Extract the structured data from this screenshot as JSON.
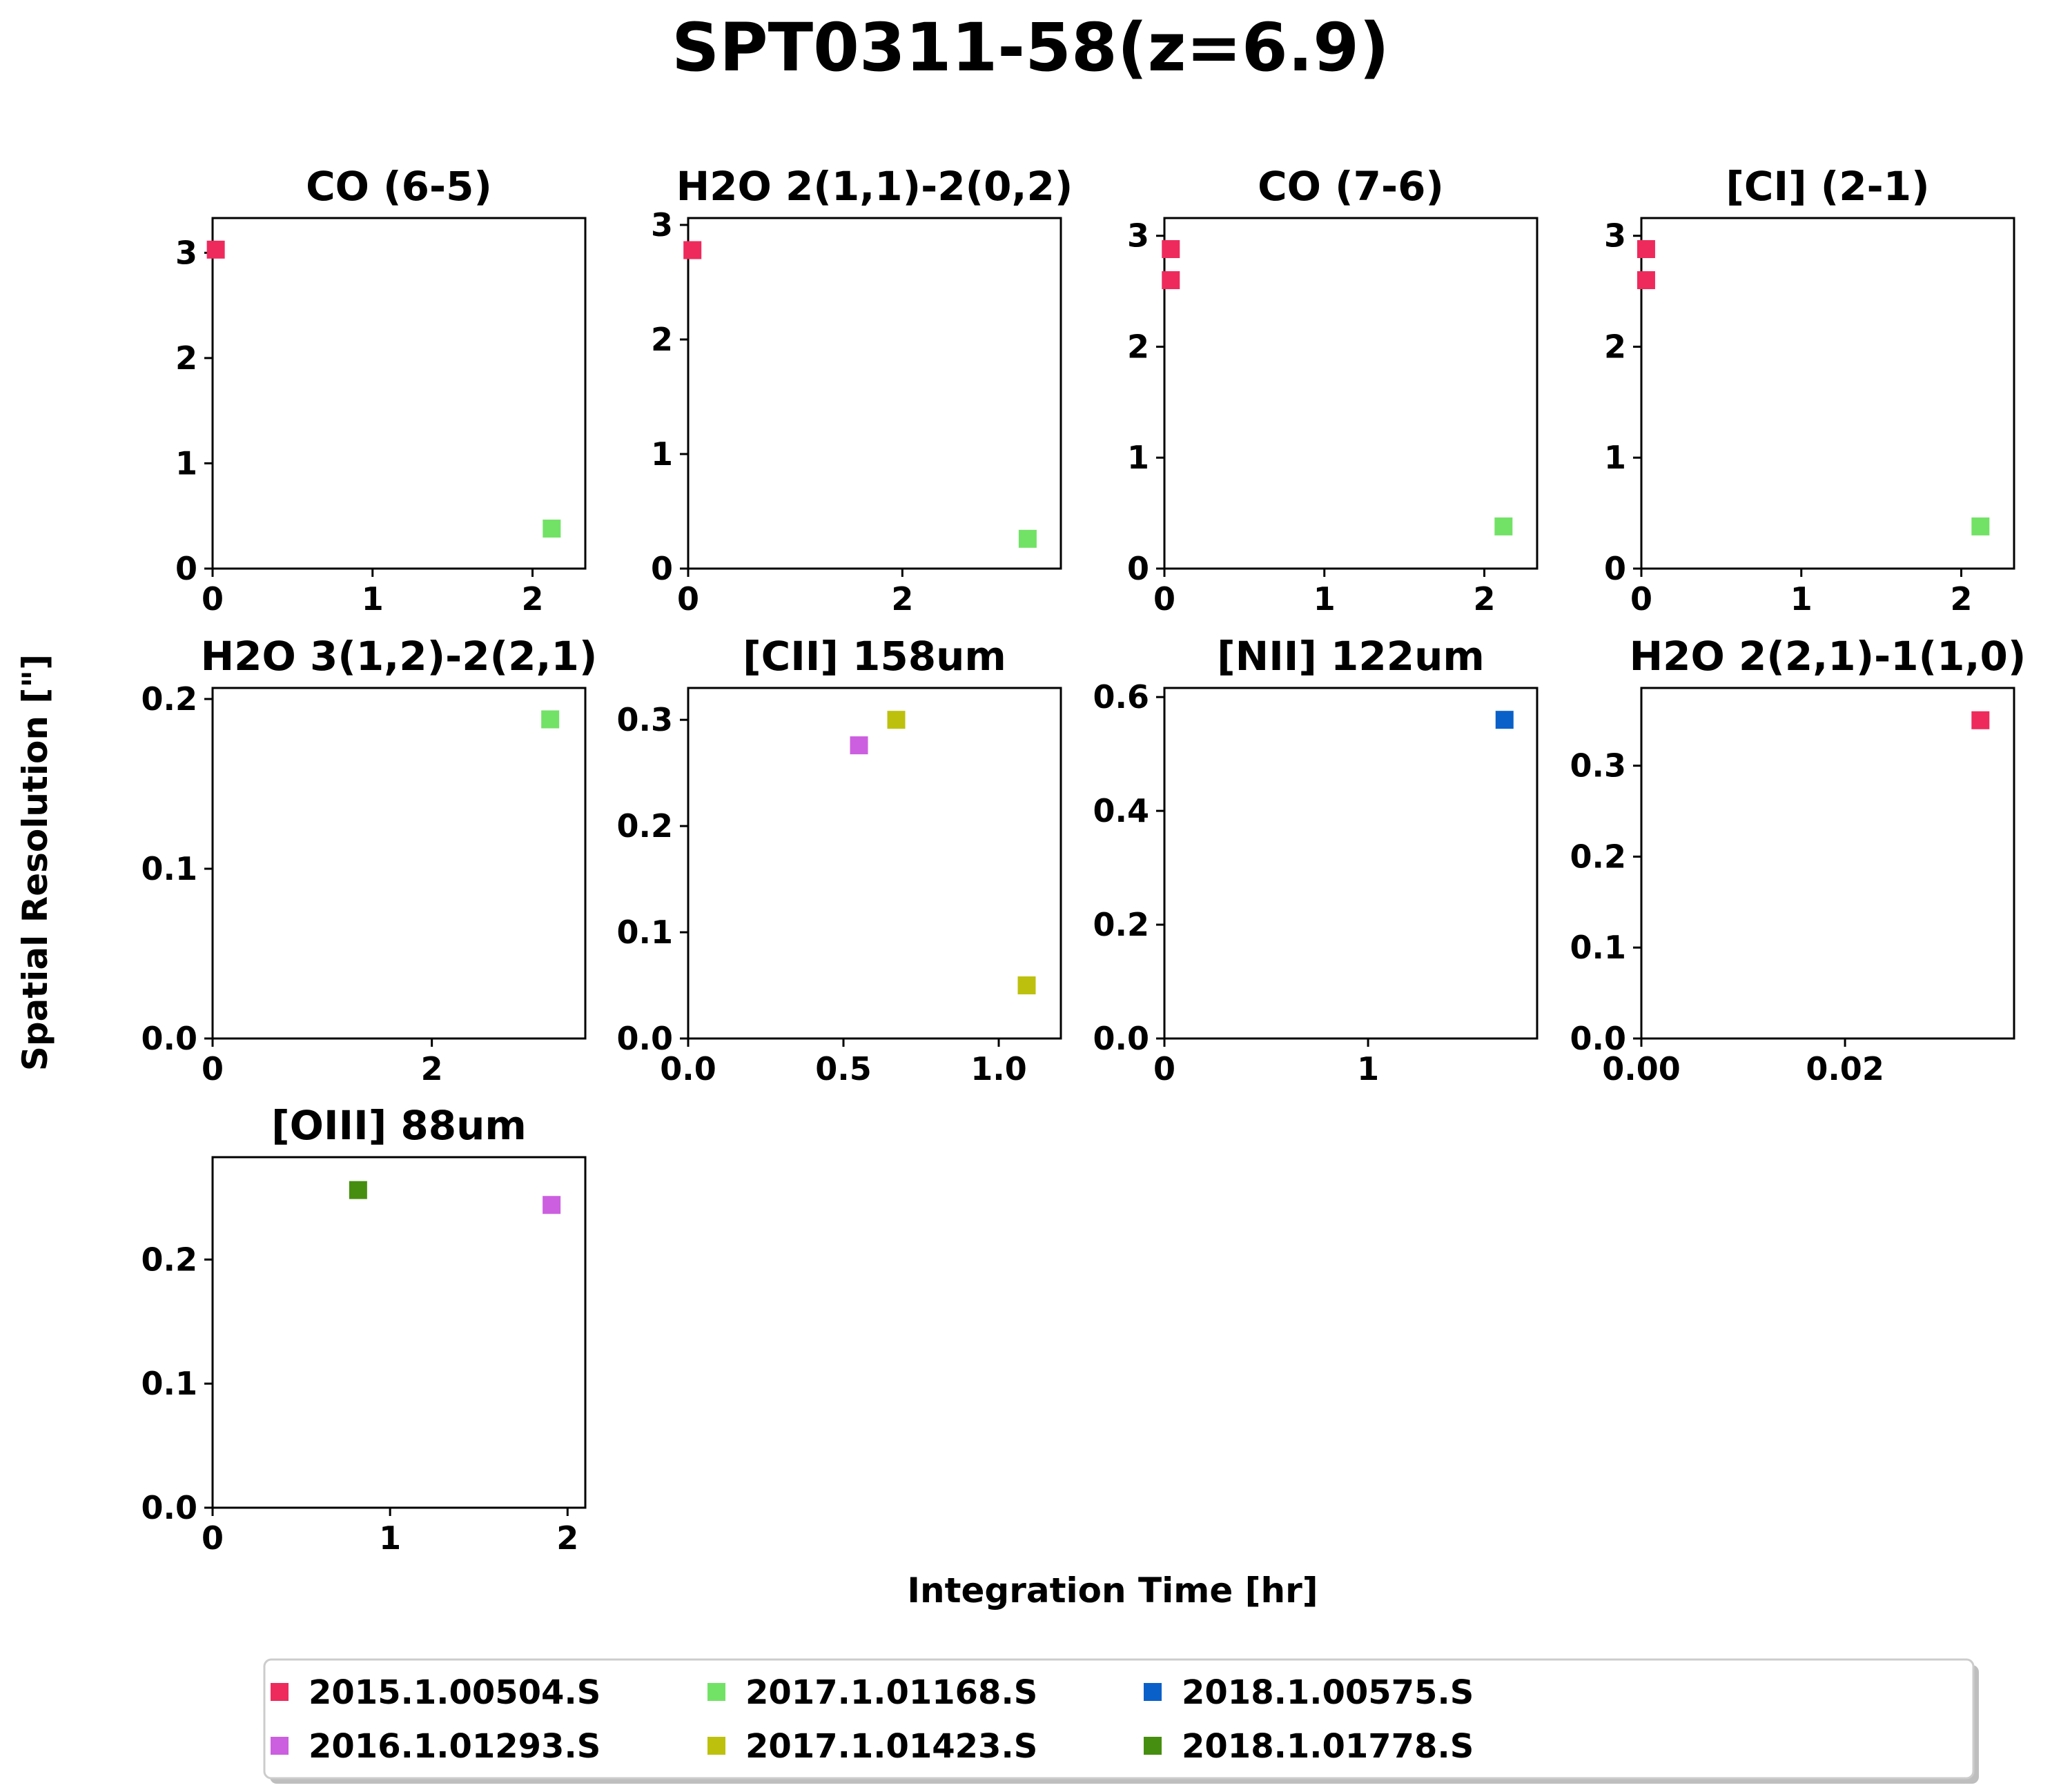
{
  "figure": {
    "title": "SPT0311-58(z=6.9)",
    "xlabel": "Integration Time [hr]",
    "ylabel": "Spatial Resolution [\"]"
  },
  "legend": {
    "placement": "bottom-center",
    "entries": [
      {
        "name": "2015.1.00504.S",
        "color": "#ee2a5c"
      },
      {
        "name": "2016.1.01293.S",
        "color": "#cc5fe0"
      },
      {
        "name": "2017.1.01168.S",
        "color": "#72e266"
      },
      {
        "name": "2017.1.01423.S",
        "color": "#bdc10d"
      },
      {
        "name": "2018.1.00575.S",
        "color": "#0a60c9"
      },
      {
        "name": "2018.1.01778.S",
        "color": "#468e10"
      }
    ]
  },
  "chart_data": [
    {
      "type": "scatter",
      "title": "CO (6-5)",
      "xlim": [
        0,
        2.33
      ],
      "ylim": [
        0,
        3.33
      ],
      "xticks": [
        "0",
        "1",
        "2"
      ],
      "xtick_values": [
        0,
        1,
        2
      ],
      "yticks": [
        "0",
        "1",
        "2",
        "3"
      ],
      "ytick_values": [
        0,
        1,
        2,
        3
      ],
      "points": [
        {
          "x": 0.02,
          "y": 3.03,
          "project": "2015.1.00504.S"
        },
        {
          "x": 2.12,
          "y": 0.38,
          "project": "2017.1.01168.S"
        }
      ]
    },
    {
      "type": "scatter",
      "title": "H2O 2(1,1)-2(0,2)",
      "xlim": [
        0,
        3.48
      ],
      "ylim": [
        0,
        3.06
      ],
      "xticks": [
        "0",
        "2"
      ],
      "xtick_values": [
        0,
        2
      ],
      "yticks": [
        "0",
        "1",
        "2",
        "3"
      ],
      "ytick_values": [
        0,
        1,
        2,
        3
      ],
      "points": [
        {
          "x": 0.04,
          "y": 2.78,
          "project": "2015.1.00504.S"
        },
        {
          "x": 3.17,
          "y": 0.26,
          "project": "2017.1.01168.S"
        }
      ]
    },
    {
      "type": "scatter",
      "title": "CO (7-6)",
      "xlim": [
        0,
        2.33
      ],
      "ylim": [
        0,
        3.16
      ],
      "xticks": [
        "0",
        "1",
        "2"
      ],
      "xtick_values": [
        0,
        1,
        2
      ],
      "yticks": [
        "0",
        "1",
        "2",
        "3"
      ],
      "ytick_values": [
        0,
        1,
        2,
        3
      ],
      "points": [
        {
          "x": 0.04,
          "y": 2.88,
          "project": "2015.1.00504.S"
        },
        {
          "x": 0.04,
          "y": 2.6,
          "project": "2015.1.00504.S"
        },
        {
          "x": 2.12,
          "y": 0.38,
          "project": "2017.1.01168.S"
        }
      ]
    },
    {
      "type": "scatter",
      "title": "[CI] (2-1)",
      "xlim": [
        0,
        2.33
      ],
      "ylim": [
        0,
        3.16
      ],
      "xticks": [
        "0",
        "1",
        "2"
      ],
      "xtick_values": [
        0,
        1,
        2
      ],
      "yticks": [
        "0",
        "1",
        "2",
        "3"
      ],
      "ytick_values": [
        0,
        1,
        2,
        3
      ],
      "points": [
        {
          "x": 0.03,
          "y": 2.88,
          "project": "2015.1.00504.S"
        },
        {
          "x": 0.03,
          "y": 2.6,
          "project": "2015.1.00504.S"
        },
        {
          "x": 2.12,
          "y": 0.38,
          "project": "2017.1.01168.S"
        }
      ]
    },
    {
      "type": "scatter",
      "title": "H2O 3(1,2)-2(2,1)",
      "xlim": [
        0,
        3.4
      ],
      "ylim": [
        0,
        0.2065
      ],
      "xticks": [
        "0",
        "2"
      ],
      "xtick_values": [
        0,
        2
      ],
      "yticks": [
        "0.0",
        "0.1",
        "0.2"
      ],
      "ytick_values": [
        0,
        0.1,
        0.2
      ],
      "points": [
        {
          "x": 3.08,
          "y": 0.188,
          "project": "2017.1.01168.S"
        }
      ]
    },
    {
      "type": "scatter",
      "title": "[CII] 158um",
      "xlim": [
        0,
        1.2
      ],
      "ylim": [
        0,
        0.33
      ],
      "xticks": [
        "0.0",
        "0.5",
        "1.0"
      ],
      "xtick_values": [
        0,
        0.5,
        1.0
      ],
      "yticks": [
        "0.0",
        "0.1",
        "0.2",
        "0.3"
      ],
      "ytick_values": [
        0,
        0.1,
        0.2,
        0.3
      ],
      "points": [
        {
          "x": 0.55,
          "y": 0.276,
          "project": "2016.1.01293.S"
        },
        {
          "x": 0.67,
          "y": 0.3,
          "project": "2017.1.01423.S"
        },
        {
          "x": 1.09,
          "y": 0.05,
          "project": "2017.1.01423.S"
        }
      ]
    },
    {
      "type": "scatter",
      "title": "[NII] 122um",
      "xlim": [
        0,
        1.83
      ],
      "ylim": [
        0,
        0.616
      ],
      "xticks": [
        "0",
        "1"
      ],
      "xtick_values": [
        0,
        1
      ],
      "yticks": [
        "0.0",
        "0.2",
        "0.4",
        "0.6"
      ],
      "ytick_values": [
        0,
        0.2,
        0.4,
        0.6
      ],
      "points": [
        {
          "x": 1.67,
          "y": 0.56,
          "project": "2018.1.00575.S"
        }
      ]
    },
    {
      "type": "scatter",
      "title": "H2O 2(2,1)-1(1,0)",
      "xlim": [
        0,
        0.0366
      ],
      "ylim": [
        0,
        0.3855
      ],
      "xticks": [
        "0.00",
        "0.02"
      ],
      "xtick_values": [
        0,
        0.02
      ],
      "yticks": [
        "0.0",
        "0.1",
        "0.2",
        "0.3"
      ],
      "ytick_values": [
        0,
        0.1,
        0.2,
        0.3
      ],
      "points": [
        {
          "x": 0.0333,
          "y": 0.35,
          "project": "2015.1.00504.S"
        }
      ]
    },
    {
      "type": "scatter",
      "title": "[OIII] 88um",
      "xlim": [
        0,
        2.1
      ],
      "ylim": [
        0,
        0.2825
      ],
      "xticks": [
        "0",
        "1",
        "2"
      ],
      "xtick_values": [
        0,
        1,
        2
      ],
      "yticks": [
        "0.0",
        "0.1",
        "0.2"
      ],
      "ytick_values": [
        0,
        0.1,
        0.2
      ],
      "points": [
        {
          "x": 0.82,
          "y": 0.256,
          "project": "2018.1.01778.S"
        },
        {
          "x": 1.91,
          "y": 0.244,
          "project": "2016.1.01293.S"
        }
      ]
    }
  ]
}
